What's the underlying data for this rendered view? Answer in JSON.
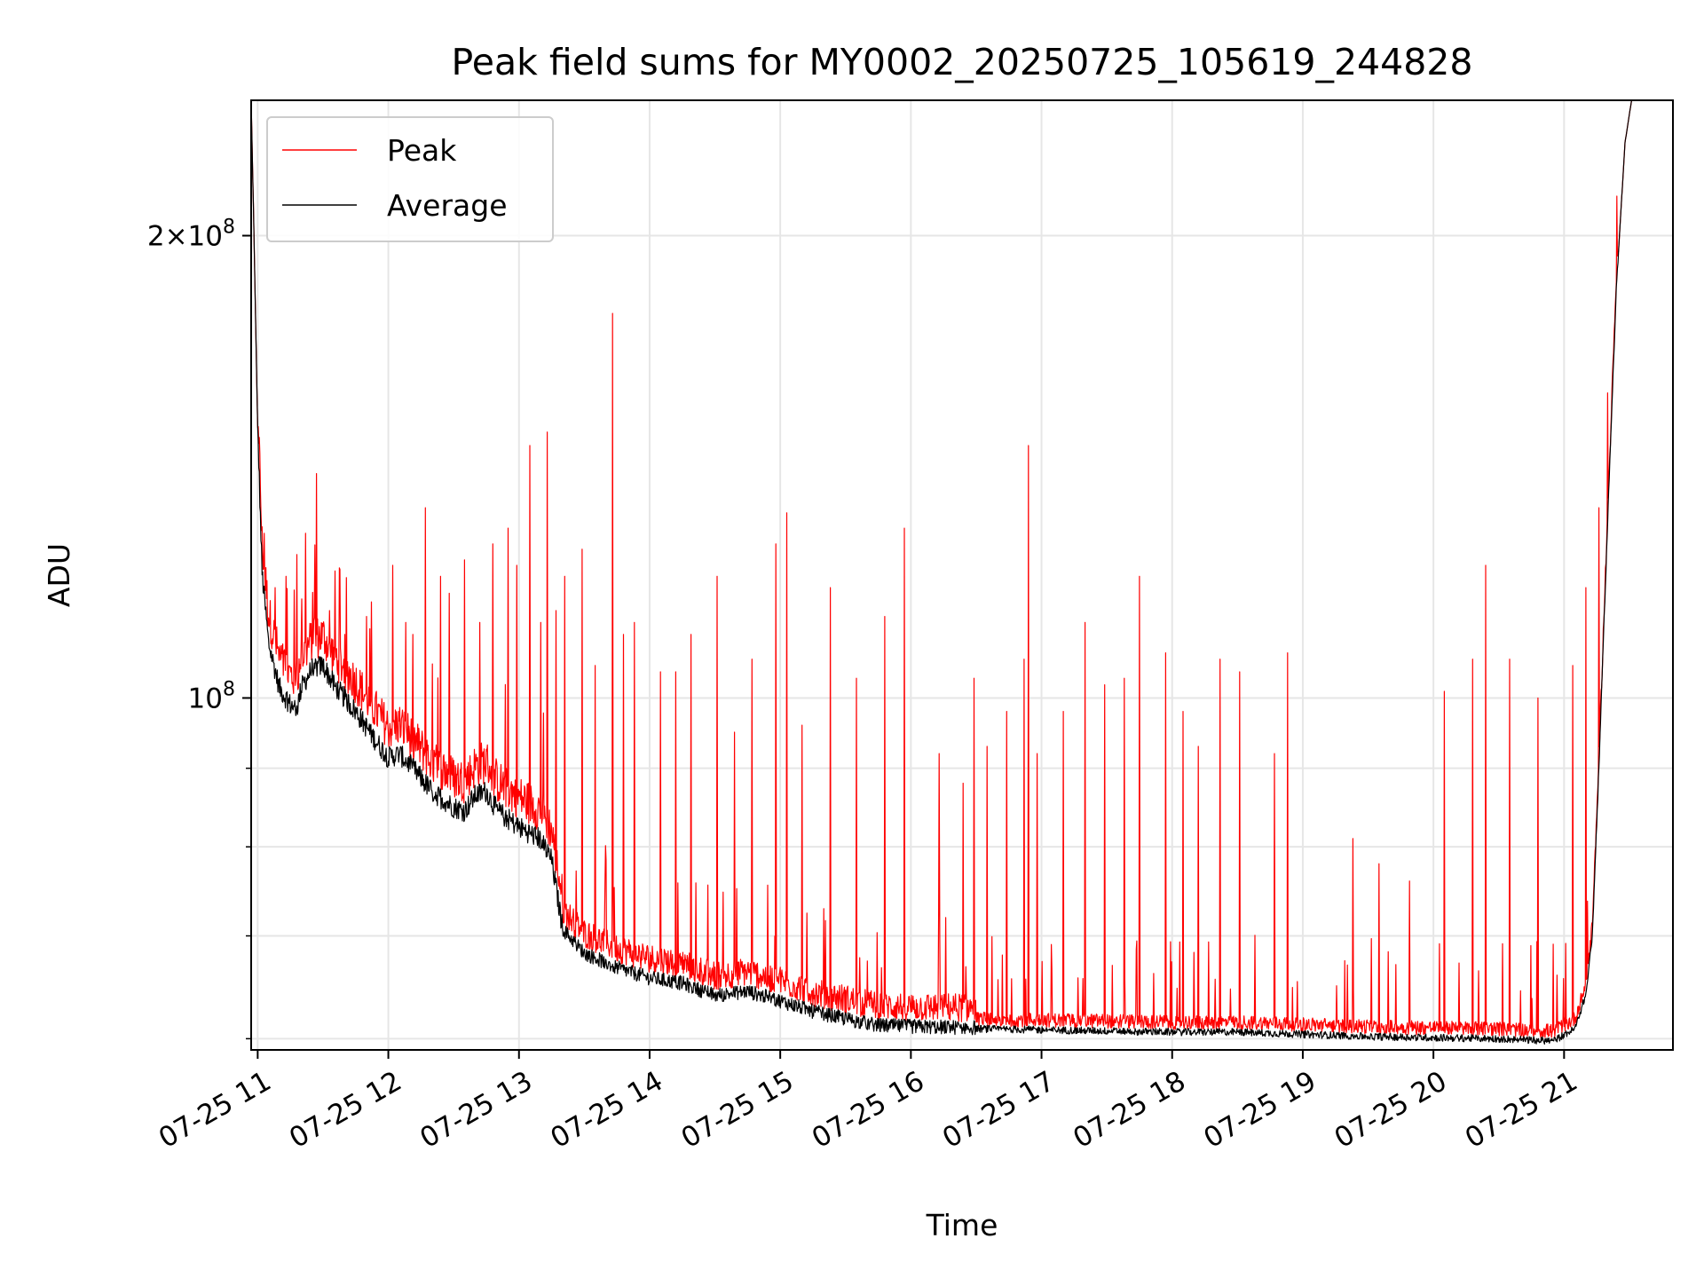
{
  "chart_data": {
    "type": "line",
    "title": "Peak field sums for MY0002_20250725_105619_244828",
    "xlabel": "Time",
    "ylabel": "ADU",
    "y_scale": "log",
    "ylim": [
      59000000,
      245000000
    ],
    "y_major_ticks": [
      {
        "value": 100000000,
        "base": "10",
        "exp": "8",
        "coef": ""
      },
      {
        "value": 200000000,
        "base": "10",
        "exp": "8",
        "coef": "2×"
      }
    ],
    "y_minor_ticks": [
      60000000,
      70000000,
      80000000,
      90000000
    ],
    "x_unit": "hours",
    "xlim": [
      "2025-07-25 10:57",
      "2025-07-25 21:50"
    ],
    "x_ticks": [
      {
        "value": "2025-07-25 11:00",
        "label": "07-25 11"
      },
      {
        "value": "2025-07-25 12:00",
        "label": "07-25 12"
      },
      {
        "value": "2025-07-25 13:00",
        "label": "07-25 13"
      },
      {
        "value": "2025-07-25 14:00",
        "label": "07-25 14"
      },
      {
        "value": "2025-07-25 15:00",
        "label": "07-25 15"
      },
      {
        "value": "2025-07-25 16:00",
        "label": "07-25 16"
      },
      {
        "value": "2025-07-25 17:00",
        "label": "07-25 17"
      },
      {
        "value": "2025-07-25 18:00",
        "label": "07-25 18"
      },
      {
        "value": "2025-07-25 19:00",
        "label": "07-25 19"
      },
      {
        "value": "2025-07-25 20:00",
        "label": "07-25 20"
      },
      {
        "value": "2025-07-25 21:00",
        "label": "07-25 21"
      }
    ],
    "grid": true,
    "legend_position": "top-left",
    "series": [
      {
        "name": "Average",
        "color": "#000000",
        "points": [
          [
            "10:57",
            245000000
          ],
          [
            "10:58",
            210000000
          ],
          [
            "11:00",
            150000000
          ],
          [
            "11:02",
            120000000
          ],
          [
            "11:05",
            108000000
          ],
          [
            "11:10",
            101000000
          ],
          [
            "11:15",
            98500000
          ],
          [
            "11:18",
            98000000
          ],
          [
            "11:20",
            101000000
          ],
          [
            "11:25",
            104000000
          ],
          [
            "11:30",
            104500000
          ],
          [
            "11:35",
            101500000
          ],
          [
            "11:45",
            97500000
          ],
          [
            "11:55",
            93000000
          ],
          [
            "12:00",
            91000000
          ],
          [
            "12:05",
            91500000
          ],
          [
            "12:10",
            90000000
          ],
          [
            "12:20",
            86500000
          ],
          [
            "12:30",
            84500000
          ],
          [
            "12:35",
            84000000
          ],
          [
            "12:40",
            86000000
          ],
          [
            "12:45",
            86500000
          ],
          [
            "12:50",
            84000000
          ],
          [
            "13:00",
            82000000
          ],
          [
            "13:10",
            80500000
          ],
          [
            "13:15",
            78000000
          ],
          [
            "13:20",
            70500000
          ],
          [
            "13:30",
            68000000
          ],
          [
            "13:45",
            66500000
          ],
          [
            "14:00",
            65500000
          ],
          [
            "14:15",
            65000000
          ],
          [
            "14:30",
            63800000
          ],
          [
            "14:45",
            64200000
          ],
          [
            "15:00",
            63300000
          ],
          [
            "15:15",
            62300000
          ],
          [
            "15:30",
            61600000
          ],
          [
            "15:45",
            61000000
          ],
          [
            "16:00",
            60900000
          ],
          [
            "16:30",
            60800000
          ],
          [
            "17:00",
            60700000
          ],
          [
            "17:30",
            60600000
          ],
          [
            "18:00",
            60500000
          ],
          [
            "18:30",
            60500000
          ],
          [
            "19:00",
            60300000
          ],
          [
            "19:30",
            60100000
          ],
          [
            "20:00",
            60000000
          ],
          [
            "20:30",
            59900000
          ],
          [
            "20:55",
            59700000
          ],
          [
            "21:05",
            60800000
          ],
          [
            "21:10",
            64000000
          ],
          [
            "21:13",
            70000000
          ],
          [
            "21:16",
            90000000
          ],
          [
            "21:20",
            130000000
          ],
          [
            "21:24",
            185000000
          ],
          [
            "21:28",
            230000000
          ],
          [
            "21:31",
            245000000
          ],
          [
            "21:50",
            245000000
          ]
        ]
      },
      {
        "name": "Peak",
        "color": "#ff0000",
        "spikes": [
          [
            "11:03",
            128000000
          ],
          [
            "11:08",
            118000000
          ],
          [
            "11:13",
            120000000
          ],
          [
            "11:18",
            124000000
          ],
          [
            "11:22",
            128000000
          ],
          [
            "11:27",
            140000000
          ],
          [
            "11:33",
            114000000
          ],
          [
            "11:40",
            110000000
          ],
          [
            "11:50",
            113000000
          ],
          [
            "12:02",
            122000000
          ],
          [
            "12:08",
            112000000
          ],
          [
            "12:17",
            133000000
          ],
          [
            "12:24",
            120000000
          ],
          [
            "12:28",
            117000000
          ],
          [
            "12:35",
            123000000
          ],
          [
            "12:42",
            112000000
          ],
          [
            "12:48",
            126000000
          ],
          [
            "12:55",
            129000000
          ],
          [
            "12:59",
            122000000
          ],
          [
            "13:05",
            146000000
          ],
          [
            "13:10",
            112000000
          ],
          [
            "13:13",
            149000000
          ],
          [
            "13:17",
            114000000
          ],
          [
            "13:21",
            120000000
          ],
          [
            "13:29",
            125000000
          ],
          [
            "13:35",
            105000000
          ],
          [
            "13:43",
            178000000
          ],
          [
            "13:48",
            110000000
          ],
          [
            "13:53",
            112000000
          ],
          [
            "14:05",
            104000000
          ],
          [
            "14:12",
            104000000
          ],
          [
            "14:19",
            110000000
          ],
          [
            "14:31",
            120000000
          ],
          [
            "14:39",
            95000000
          ],
          [
            "14:47",
            106000000
          ],
          [
            "14:58",
            126000000
          ],
          [
            "15:03",
            132000000
          ],
          [
            "15:10",
            96000000
          ],
          [
            "15:23",
            118000000
          ],
          [
            "15:35",
            103000000
          ],
          [
            "15:48",
            113000000
          ],
          [
            "15:57",
            129000000
          ],
          [
            "16:13",
            92000000
          ],
          [
            "16:24",
            88000000
          ],
          [
            "16:29",
            103000000
          ],
          [
            "16:35",
            93000000
          ],
          [
            "16:44",
            98000000
          ],
          [
            "16:52",
            106000000
          ],
          [
            "16:54",
            146000000
          ],
          [
            "16:58",
            92000000
          ],
          [
            "17:10",
            98000000
          ],
          [
            "17:20",
            112000000
          ],
          [
            "17:29",
            102000000
          ],
          [
            "17:38",
            103000000
          ],
          [
            "17:45",
            120000000
          ],
          [
            "17:57",
            107000000
          ],
          [
            "18:05",
            98000000
          ],
          [
            "18:12",
            93000000
          ],
          [
            "18:22",
            106000000
          ],
          [
            "18:31",
            104000000
          ],
          [
            "18:47",
            92000000
          ],
          [
            "18:53",
            107000000
          ],
          [
            "19:23",
            81000000
          ],
          [
            "19:35",
            78000000
          ],
          [
            "19:49",
            76000000
          ],
          [
            "20:05",
            101000000
          ],
          [
            "20:18",
            106000000
          ],
          [
            "20:24",
            122000000
          ],
          [
            "20:35",
            106000000
          ],
          [
            "20:48",
            100000000
          ],
          [
            "21:04",
            105000000
          ],
          [
            "21:10",
            118000000
          ],
          [
            "21:16",
            133000000
          ],
          [
            "21:20",
            158000000
          ]
        ]
      }
    ]
  }
}
